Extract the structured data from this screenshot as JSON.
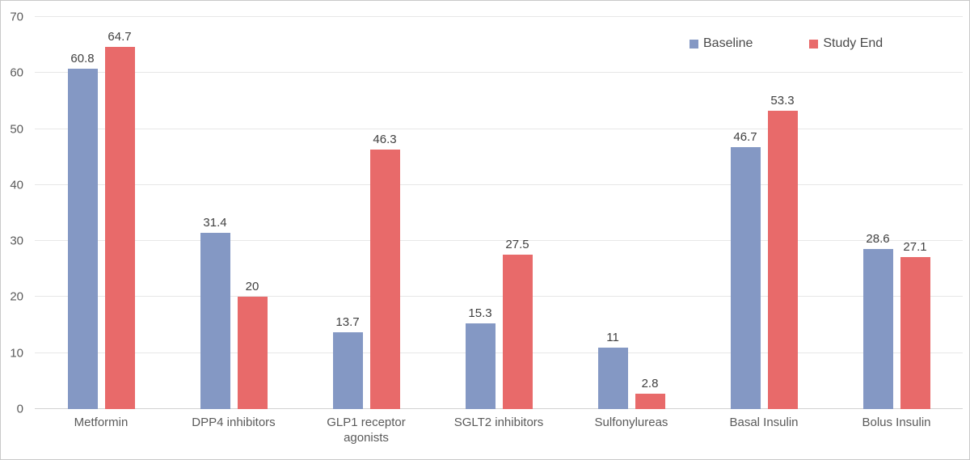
{
  "chart_data": {
    "type": "bar",
    "subtype": "grouped-vertical",
    "title": "",
    "xlabel": "",
    "ylabel": "",
    "categories": [
      "Metformin",
      "DPP4 inhibitors",
      "GLP1 receptor agonists",
      "SGLT2 inhibitors",
      "Sulfonylureas",
      "Basal Insulin",
      "Bolus Insulin"
    ],
    "series": [
      {
        "name": "Baseline",
        "color": "#8498c4",
        "values": [
          60.8,
          31.4,
          13.7,
          15.3,
          11,
          46.7,
          28.6
        ]
      },
      {
        "name": "Study End",
        "color": "#e86a6a",
        "values": [
          64.7,
          20,
          46.3,
          27.5,
          2.8,
          53.3,
          27.1
        ]
      }
    ],
    "ylim": [
      0,
      70
    ],
    "yticks": [
      0,
      10,
      20,
      30,
      40,
      50,
      60,
      70
    ],
    "grid": true,
    "gridline_color": "#e7e7e7",
    "axis_line_color": "#d2d2d2",
    "value_labels": true,
    "legend_position": "top-right",
    "text_colors": {
      "value_label": "#404040",
      "axis_tick": "#5a5a5a",
      "legend": "#4a4a4a"
    }
  }
}
